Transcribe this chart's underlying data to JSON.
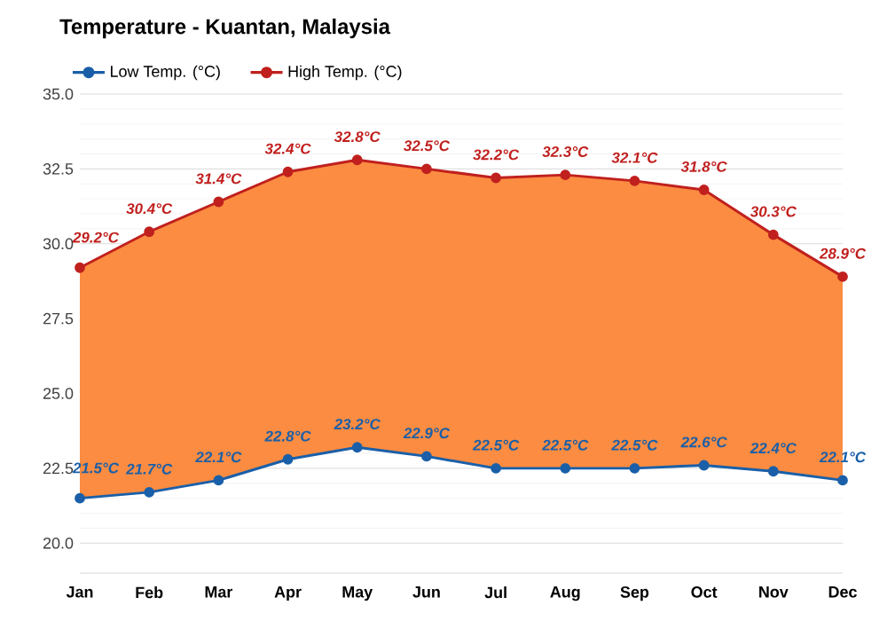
{
  "chart_data": {
    "type": "line",
    "title": "Temperature - Kuantan, Malaysia",
    "categories": [
      "Jan",
      "Feb",
      "Mar",
      "Apr",
      "May",
      "Jun",
      "Jul",
      "Aug",
      "Sep",
      "Oct",
      "Nov",
      "Dec"
    ],
    "series": [
      {
        "name": "Low Temp. (°C)",
        "color": "#1a5fa8",
        "values": [
          21.5,
          21.7,
          22.1,
          22.8,
          23.2,
          22.9,
          22.5,
          22.5,
          22.5,
          22.6,
          22.4,
          22.1
        ],
        "value_labels": [
          "21.5°C",
          "21.7°C",
          "22.1°C",
          "22.8°C",
          "23.2°C",
          "22.9°C",
          "22.5°C",
          "22.5°C",
          "22.5°C",
          "22.6°C",
          "22.4°C",
          "22.1°C"
        ]
      },
      {
        "name": "High Temp. (°C)",
        "color": "#c0201e",
        "type": "area",
        "values": [
          29.2,
          30.4,
          31.4,
          32.4,
          32.8,
          32.5,
          32.2,
          32.3,
          32.1,
          31.8,
          30.3,
          28.9
        ],
        "value_labels": [
          "29.2°C",
          "30.4°C",
          "31.4°C",
          "32.4°C",
          "32.8°C",
          "32.5°C",
          "32.2°C",
          "32.3°C",
          "32.1°C",
          "31.8°C",
          "30.3°C",
          "28.9°C"
        ]
      }
    ],
    "ylim": [
      19,
      35
    ],
    "yticks": [
      {
        "value": 20,
        "label": "20.0"
      },
      {
        "value": 22.5,
        "label": "22.5"
      },
      {
        "value": 25,
        "label": "25.0"
      },
      {
        "value": 27.5,
        "label": "27.5"
      },
      {
        "value": 30,
        "label": "30.0"
      },
      {
        "value": 32.5,
        "label": "32.5"
      },
      {
        "value": 35,
        "label": "35.0"
      }
    ],
    "grid": "y",
    "legend": "top left",
    "marker": "circle",
    "line_style": "solid"
  }
}
